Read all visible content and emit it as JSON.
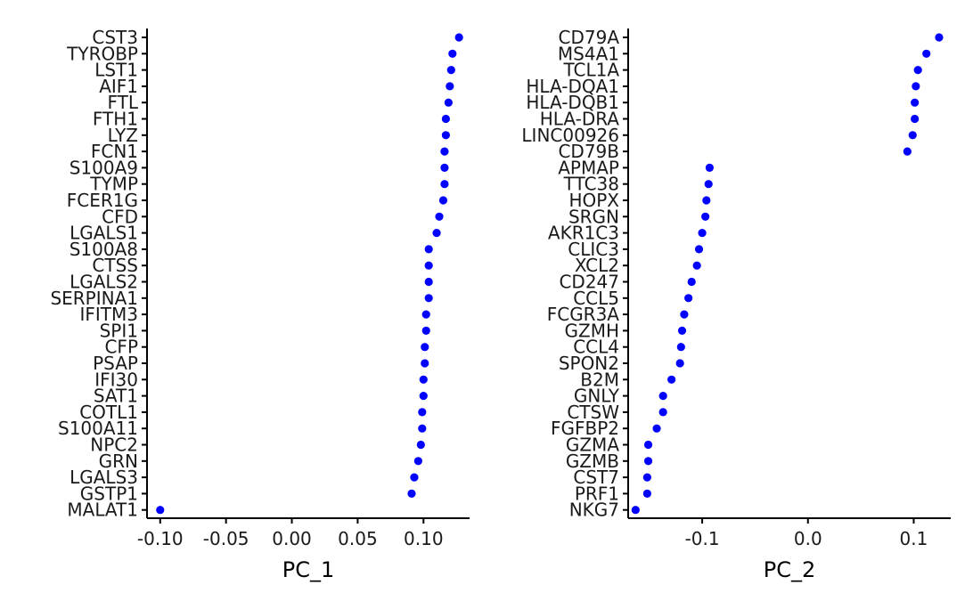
{
  "colors": {
    "point": "#0000ff",
    "axis": "#000000",
    "background": "#ffffff"
  },
  "chart_data": [
    {
      "type": "scatter",
      "xlabel": "PC_1",
      "xlim": [
        -0.11,
        0.135
      ],
      "xticks": [
        -0.1,
        -0.05,
        0.0,
        0.05,
        0.1
      ],
      "xtick_labels": [
        "-0.10",
        "-0.05",
        "0.00",
        "0.05",
        "0.10"
      ],
      "genes": [
        "CST3",
        "TYROBP",
        "LST1",
        "AIF1",
        "FTL",
        "FTH1",
        "LYZ",
        "FCN1",
        "S100A9",
        "TYMP",
        "FCER1G",
        "CFD",
        "LGALS1",
        "S100A8",
        "CTSS",
        "LGALS2",
        "SERPINA1",
        "IFITM3",
        "SPI1",
        "CFP",
        "PSAP",
        "IFI30",
        "SAT1",
        "COTL1",
        "S100A11",
        "NPC2",
        "GRN",
        "LGALS3",
        "GSTP1",
        "MALAT1"
      ],
      "values": [
        0.127,
        0.122,
        0.121,
        0.12,
        0.119,
        0.117,
        0.117,
        0.116,
        0.116,
        0.116,
        0.115,
        0.112,
        0.11,
        0.104,
        0.104,
        0.104,
        0.104,
        0.102,
        0.102,
        0.101,
        0.101,
        0.1,
        0.1,
        0.099,
        0.099,
        0.098,
        0.096,
        0.093,
        0.091,
        -0.1
      ]
    },
    {
      "type": "scatter",
      "xlabel": "PC_2",
      "xlim": [
        -0.17,
        0.135
      ],
      "xticks": [
        -0.1,
        0.0,
        0.1
      ],
      "xtick_labels": [
        "-0.1",
        "0.0",
        "0.1"
      ],
      "genes": [
        "CD79A",
        "MS4A1",
        "TCL1A",
        "HLA-DQA1",
        "HLA-DQB1",
        "HLA-DRA",
        "LINC00926",
        "CD79B",
        "APMAP",
        "TTC38",
        "HOPX",
        "SRGN",
        "AKR1C3",
        "CLIC3",
        "XCL2",
        "CD247",
        "CCL5",
        "FCGR3A",
        "GZMH",
        "CCL4",
        "SPON2",
        "B2M",
        "GNLY",
        "CTSW",
        "FGFBP2",
        "GZMA",
        "GZMB",
        "CST7",
        "PRF1",
        "NKG7"
      ],
      "values": [
        0.124,
        0.112,
        0.104,
        0.102,
        0.101,
        0.101,
        0.099,
        0.094,
        -0.093,
        -0.094,
        -0.096,
        -0.097,
        -0.1,
        -0.103,
        -0.105,
        -0.11,
        -0.113,
        -0.117,
        -0.119,
        -0.12,
        -0.121,
        -0.129,
        -0.137,
        -0.137,
        -0.143,
        -0.151,
        -0.151,
        -0.152,
        -0.152,
        -0.163
      ]
    }
  ]
}
